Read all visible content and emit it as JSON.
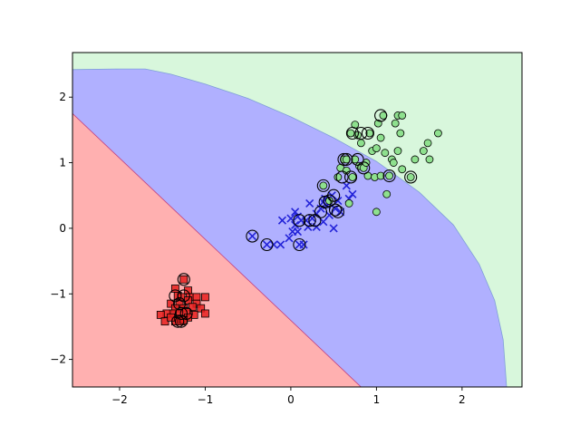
{
  "chart_data": {
    "type": "scatter",
    "title": "",
    "xlabel": "",
    "ylabel": "",
    "xlim": [
      -2.55,
      2.7
    ],
    "ylim": [
      -2.42,
      2.68
    ],
    "xticks": [
      -2,
      -1,
      0,
      1,
      2
    ],
    "yticks": [
      -2,
      -1,
      0,
      1,
      2
    ],
    "xtick_labels": [
      "−2",
      "−1",
      "0",
      "1",
      "2"
    ],
    "ytick_labels": [
      "−2",
      "−1",
      "0",
      "1",
      "2"
    ],
    "grid": false,
    "legend": "none",
    "regions": [
      {
        "class": "0",
        "color": "#ffb0b0",
        "boundary_line": [
          [
            -2.55,
            1.75
          ],
          [
            0.82,
            -2.42
          ]
        ]
      },
      {
        "class": "1",
        "color": "#b0b0ff",
        "outer_boundary": "ellipse-like curve from (-2.55, 2.42) to (2.52, -2.42)"
      },
      {
        "class": "2",
        "color": "#d8f7dc"
      }
    ],
    "series": [
      {
        "marker": "square",
        "color": "#e8201e",
        "points": [
          [
            -1.25,
            -0.78
          ],
          [
            -1.35,
            -0.92
          ],
          [
            -1.2,
            -0.95
          ],
          [
            -1.32,
            -1.03
          ],
          [
            -1.28,
            -1.05
          ],
          [
            -1.18,
            -1.05
          ],
          [
            -1.1,
            -1.05
          ],
          [
            -1.0,
            -1.05
          ],
          [
            -1.4,
            -1.15
          ],
          [
            -1.3,
            -1.15
          ],
          [
            -1.2,
            -1.1
          ],
          [
            -1.1,
            -1.15
          ],
          [
            -1.35,
            -1.22
          ],
          [
            -1.25,
            -1.22
          ],
          [
            -1.15,
            -1.2
          ],
          [
            -1.05,
            -1.22
          ],
          [
            -1.3,
            -1.3
          ],
          [
            -1.22,
            -1.28
          ],
          [
            -1.38,
            -1.3
          ],
          [
            -1.45,
            -1.3
          ],
          [
            -1.52,
            -1.32
          ],
          [
            -1.0,
            -1.3
          ],
          [
            -1.13,
            -1.32
          ],
          [
            -1.3,
            -1.38
          ],
          [
            -1.2,
            -1.36
          ],
          [
            -1.47,
            -1.42
          ],
          [
            -1.35,
            -1.42
          ],
          [
            -1.28,
            -1.42
          ],
          [
            -1.4,
            -1.36
          ],
          [
            -1.25,
            -1.4
          ]
        ]
      },
      {
        "marker": "x",
        "color": "#2323d8",
        "points": [
          [
            -0.45,
            -0.12
          ],
          [
            -0.28,
            -0.25
          ],
          [
            -0.2,
            -0.25
          ],
          [
            -0.12,
            -0.25
          ],
          [
            -0.1,
            0.12
          ],
          [
            -0.02,
            -0.15
          ],
          [
            0.02,
            -0.05
          ],
          [
            0.05,
            0.05
          ],
          [
            0.08,
            0.18
          ],
          [
            0.05,
            0.25
          ],
          [
            0.1,
            -0.25
          ],
          [
            0.12,
            0.12
          ],
          [
            0.18,
            0.12
          ],
          [
            0.2,
            0.02
          ],
          [
            0.22,
            0.38
          ],
          [
            0.25,
            0.15
          ],
          [
            0.3,
            0.02
          ],
          [
            0.3,
            0.22
          ],
          [
            0.35,
            0.3
          ],
          [
            0.38,
            0.1
          ],
          [
            0.4,
            0.45
          ],
          [
            0.42,
            0.35
          ],
          [
            0.45,
            0.2
          ],
          [
            0.48,
            0.5
          ],
          [
            0.5,
            0.0
          ],
          [
            0.52,
            0.3
          ],
          [
            0.55,
            0.42
          ],
          [
            0.58,
            0.25
          ],
          [
            0.65,
            0.65
          ],
          [
            0.68,
            0.45
          ],
          [
            0.72,
            0.52
          ],
          [
            0.15,
            -0.25
          ],
          [
            0.0,
            0.15
          ],
          [
            0.08,
            -0.05
          ],
          [
            0.38,
            0.4
          ],
          [
            0.45,
            0.38
          ]
        ]
      },
      {
        "marker": "circle",
        "color": "#8ee08e",
        "points": [
          [
            0.38,
            0.65
          ],
          [
            0.45,
            0.42
          ],
          [
            0.55,
            0.78
          ],
          [
            0.58,
            0.92
          ],
          [
            0.62,
            1.05
          ],
          [
            0.65,
            0.88
          ],
          [
            0.68,
            0.38
          ],
          [
            0.7,
            1.45
          ],
          [
            0.72,
            0.78
          ],
          [
            0.75,
            1.05
          ],
          [
            0.75,
            1.58
          ],
          [
            0.78,
            1.42
          ],
          [
            0.8,
            0.95
          ],
          [
            0.82,
            1.3
          ],
          [
            0.85,
            0.92
          ],
          [
            0.88,
            1.0
          ],
          [
            0.9,
            0.8
          ],
          [
            0.92,
            1.45
          ],
          [
            0.95,
            1.18
          ],
          [
            0.98,
            0.78
          ],
          [
            1.0,
            0.25
          ],
          [
            1.0,
            1.22
          ],
          [
            1.02,
            1.6
          ],
          [
            1.05,
            1.38
          ],
          [
            1.05,
            0.8
          ],
          [
            1.08,
            1.72
          ],
          [
            1.1,
            1.15
          ],
          [
            1.12,
            0.52
          ],
          [
            1.15,
            0.8
          ],
          [
            1.18,
            1.05
          ],
          [
            1.2,
            1.0
          ],
          [
            1.22,
            1.6
          ],
          [
            1.25,
            1.72
          ],
          [
            1.25,
            1.18
          ],
          [
            1.28,
            1.45
          ],
          [
            1.3,
            1.72
          ],
          [
            1.3,
            0.9
          ],
          [
            1.4,
            0.78
          ],
          [
            1.45,
            1.05
          ],
          [
            1.55,
            1.18
          ],
          [
            1.6,
            1.3
          ],
          [
            1.62,
            1.05
          ],
          [
            1.72,
            1.45
          ],
          [
            0.65,
            1.05
          ]
        ]
      }
    ],
    "highlighted_points": [
      [
        -1.25,
        -0.78
      ],
      [
        -1.35,
        -1.03
      ],
      [
        -1.25,
        -1.03
      ],
      [
        -1.3,
        -1.15
      ],
      [
        -1.28,
        -1.3
      ],
      [
        -1.22,
        -1.3
      ],
      [
        -1.32,
        -1.42
      ],
      [
        -1.28,
        -1.42
      ],
      [
        -0.45,
        -0.12
      ],
      [
        -0.28,
        -0.25
      ],
      [
        0.1,
        0.12
      ],
      [
        0.1,
        -0.25
      ],
      [
        0.22,
        0.12
      ],
      [
        0.28,
        0.12
      ],
      [
        0.35,
        0.25
      ],
      [
        0.38,
        0.65
      ],
      [
        0.4,
        0.4
      ],
      [
        0.45,
        0.42
      ],
      [
        0.5,
        0.5
      ],
      [
        0.52,
        0.28
      ],
      [
        0.55,
        0.25
      ],
      [
        0.6,
        0.78
      ],
      [
        0.62,
        1.05
      ],
      [
        0.65,
        1.05
      ],
      [
        0.7,
        0.78
      ],
      [
        0.72,
        1.45
      ],
      [
        0.78,
        1.05
      ],
      [
        0.82,
        1.45
      ],
      [
        0.85,
        0.92
      ],
      [
        0.9,
        1.45
      ],
      [
        1.05,
        1.72
      ],
      [
        1.15,
        0.8
      ],
      [
        1.4,
        0.78
      ]
    ]
  }
}
